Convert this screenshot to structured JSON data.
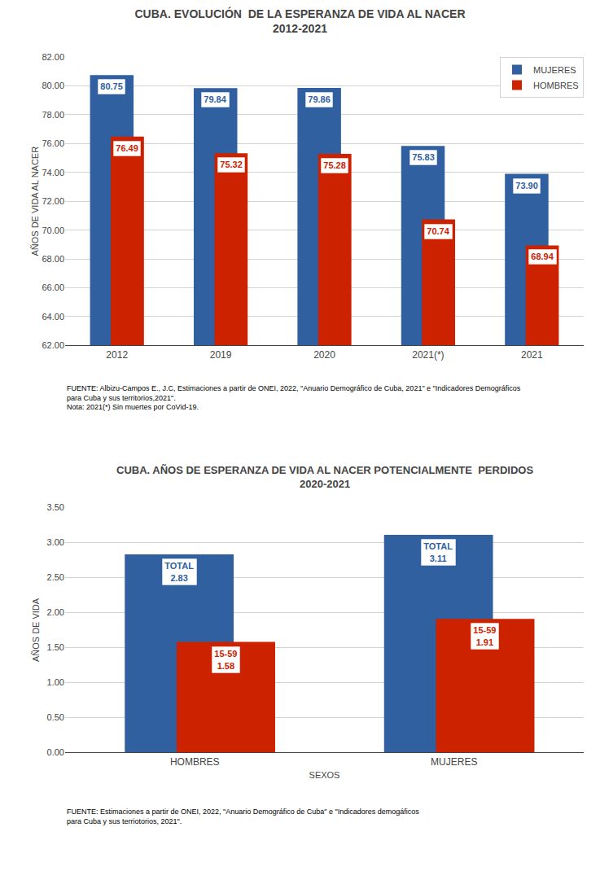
{
  "chart_data": [
    {
      "type": "bar",
      "title": "CUBA. EVOLUCIÓN  DE LA ESPERANZA DE VIDA AL NACER\n2012-2021",
      "categories": [
        "2012",
        "2019",
        "2020",
        "2021(*)",
        "2021"
      ],
      "series": [
        {
          "name": "MUJERES",
          "color": "#3060A0",
          "values": [
            80.75,
            79.84,
            79.86,
            75.83,
            73.9
          ],
          "value_labels": [
            "80.75",
            "79.84",
            "79.86",
            "75.83",
            "73.90"
          ]
        },
        {
          "name": "HOMBRES",
          "color": "#CC2200",
          "values": [
            76.49,
            75.32,
            75.28,
            70.74,
            68.94
          ],
          "value_labels": [
            "76.49",
            "75.32",
            "75.28",
            "70.74",
            "68.94"
          ]
        }
      ],
      "ylabel": "AÑOS DE VIDA AL NACER",
      "ylim": [
        62.0,
        82.0
      ],
      "yticks": [
        {
          "value": 62,
          "label": "62.00"
        },
        {
          "value": 64,
          "label": "64.00"
        },
        {
          "value": 66,
          "label": "66.00"
        },
        {
          "value": 68,
          "label": "68.00"
        },
        {
          "value": 70,
          "label": "70.00"
        },
        {
          "value": 72,
          "label": "72.00"
        },
        {
          "value": 74,
          "label": "74.00"
        },
        {
          "value": 76,
          "label": "76.00"
        },
        {
          "value": 78,
          "label": "78.00"
        },
        {
          "value": 80,
          "label": "80.00"
        },
        {
          "value": 82,
          "label": "82.00"
        }
      ],
      "grid": true,
      "legend": "upper right",
      "data_labels": true,
      "annotations": [
        "FUENTE: Albizu-Campos E., J.C, Estimaciones a partir de ONEI, 2022, \"Anuario Demográfico de Cuba, 2021\" e \"Indicadores Demográficos\npara Cuba y sus territorios,2021\".\nNota: 2021(*) Sin muertes por CoVid-19."
      ]
    },
    {
      "type": "bar",
      "title": "CUBA. AÑOS DE ESPERANZA DE VIDA AL NACER POTENCIALMENTE  PERDIDOS\n2020-2021",
      "categories": [
        "HOMBRES",
        "MUJERES"
      ],
      "series": [
        {
          "name": "TOTAL",
          "color": "#3060A0",
          "values": [
            2.83,
            3.11
          ],
          "value_labels": [
            "2.83",
            "3.11"
          ]
        },
        {
          "name": "15-59",
          "color": "#CC2200",
          "values": [
            1.58,
            1.91
          ],
          "value_labels": [
            "1.58",
            "1.91"
          ]
        }
      ],
      "ylabel": "AÑOS DE VIDA",
      "xlabel": "SEXOS",
      "ylim": [
        0.0,
        3.5
      ],
      "yticks": [
        {
          "value": 0,
          "label": "0.00"
        },
        {
          "value": 0.5,
          "label": "0.50"
        },
        {
          "value": 1,
          "label": "1.00"
        },
        {
          "value": 1.5,
          "label": "1.50"
        },
        {
          "value": 2,
          "label": "2.00"
        },
        {
          "value": 2.5,
          "label": "2.50"
        },
        {
          "value": 3,
          "label": "3.00"
        },
        {
          "value": 3.5,
          "label": "3.50"
        }
      ],
      "grid": true,
      "data_labels": true,
      "annotations": [
        "FUENTE: Estimaciones a partir de ONEI, 2022, \"Anuario Demográfico de Cuba\" e \"Indicadores demogáficos\npara Cuba y sus terriotorios, 2021\"."
      ]
    }
  ]
}
